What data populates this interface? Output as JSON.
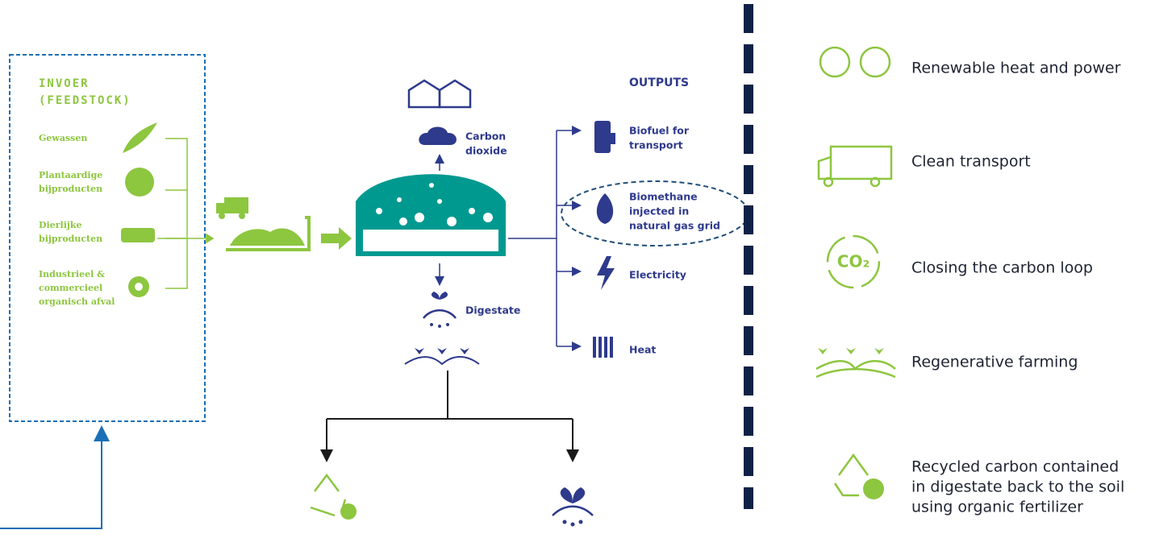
{
  "feedstock": {
    "title_lines": [
      "INVOER",
      "(FEEDSTOCK)"
    ],
    "items": [
      [
        "Gewassen"
      ],
      [
        "Plantaardige",
        "bijproducten"
      ],
      [
        "Dierlijke",
        "bijproducten"
      ],
      [
        "Industrieel &",
        "commercieel",
        "organisch afval"
      ]
    ]
  },
  "process": {
    "carbon_dioxide": [
      "Carbon",
      "dioxide"
    ],
    "digestate": "Digestate"
  },
  "outputs": {
    "title": "OUTPUTS",
    "items": [
      [
        "Biofuel for",
        "transport"
      ],
      [
        "Biomethane",
        "injected in",
        "natural gas grid"
      ],
      [
        "Electricity"
      ],
      [
        "Heat"
      ]
    ]
  },
  "benefits": [
    [
      "Renewable heat and power"
    ],
    [
      "Clean transport"
    ],
    [
      "Closing the carbon loop"
    ],
    [
      "Regenerative farming"
    ],
    [
      "Recycled carbon contained",
      "in digestate back to the soil",
      "using organic fertilizer"
    ]
  ]
}
